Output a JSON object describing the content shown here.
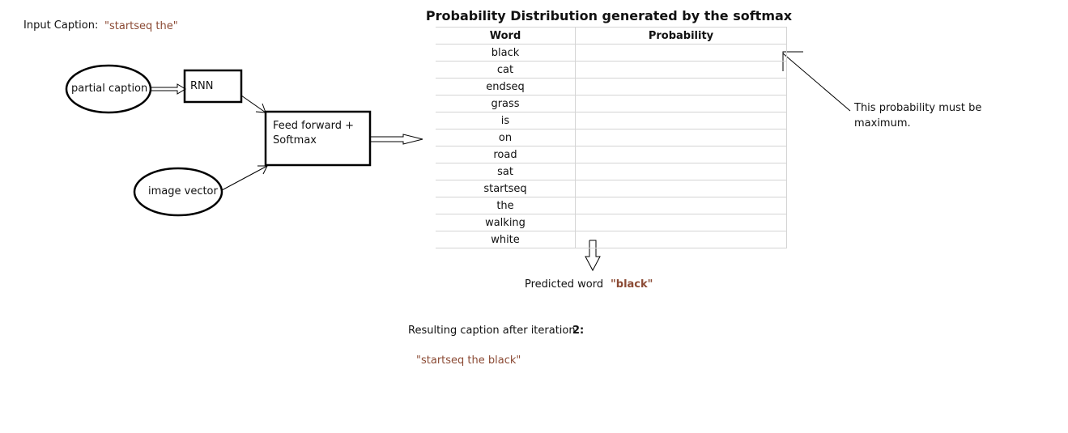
{
  "input_caption": {
    "label": "Input Caption:",
    "value": "\"startseq the\""
  },
  "diagram": {
    "partial_caption": "partial caption",
    "rnn": "RNN",
    "image_vector": "image vector",
    "feed_forward_line1": "Feed forward +",
    "feed_forward_line2": "Softmax"
  },
  "table": {
    "title": "Probability Distribution generated by the softmax",
    "columns": [
      "Word",
      "Probability"
    ],
    "rows": [
      {
        "word": "black",
        "probability": ""
      },
      {
        "word": "cat",
        "probability": ""
      },
      {
        "word": "endseq",
        "probability": ""
      },
      {
        "word": "grass",
        "probability": ""
      },
      {
        "word": "is",
        "probability": ""
      },
      {
        "word": "on",
        "probability": ""
      },
      {
        "word": "road",
        "probability": ""
      },
      {
        "word": "sat",
        "probability": ""
      },
      {
        "word": "startseq",
        "probability": ""
      },
      {
        "word": "the",
        "probability": ""
      },
      {
        "word": "walking",
        "probability": ""
      },
      {
        "word": "white",
        "probability": ""
      }
    ]
  },
  "annotation": {
    "line1": "This probability must be",
    "line2": "maximum."
  },
  "prediction": {
    "label": "Predicted word",
    "value": "\"black\""
  },
  "result": {
    "label": "Resulting caption after iteration",
    "iteration": "2:",
    "caption": "\"startseq the black\""
  }
}
